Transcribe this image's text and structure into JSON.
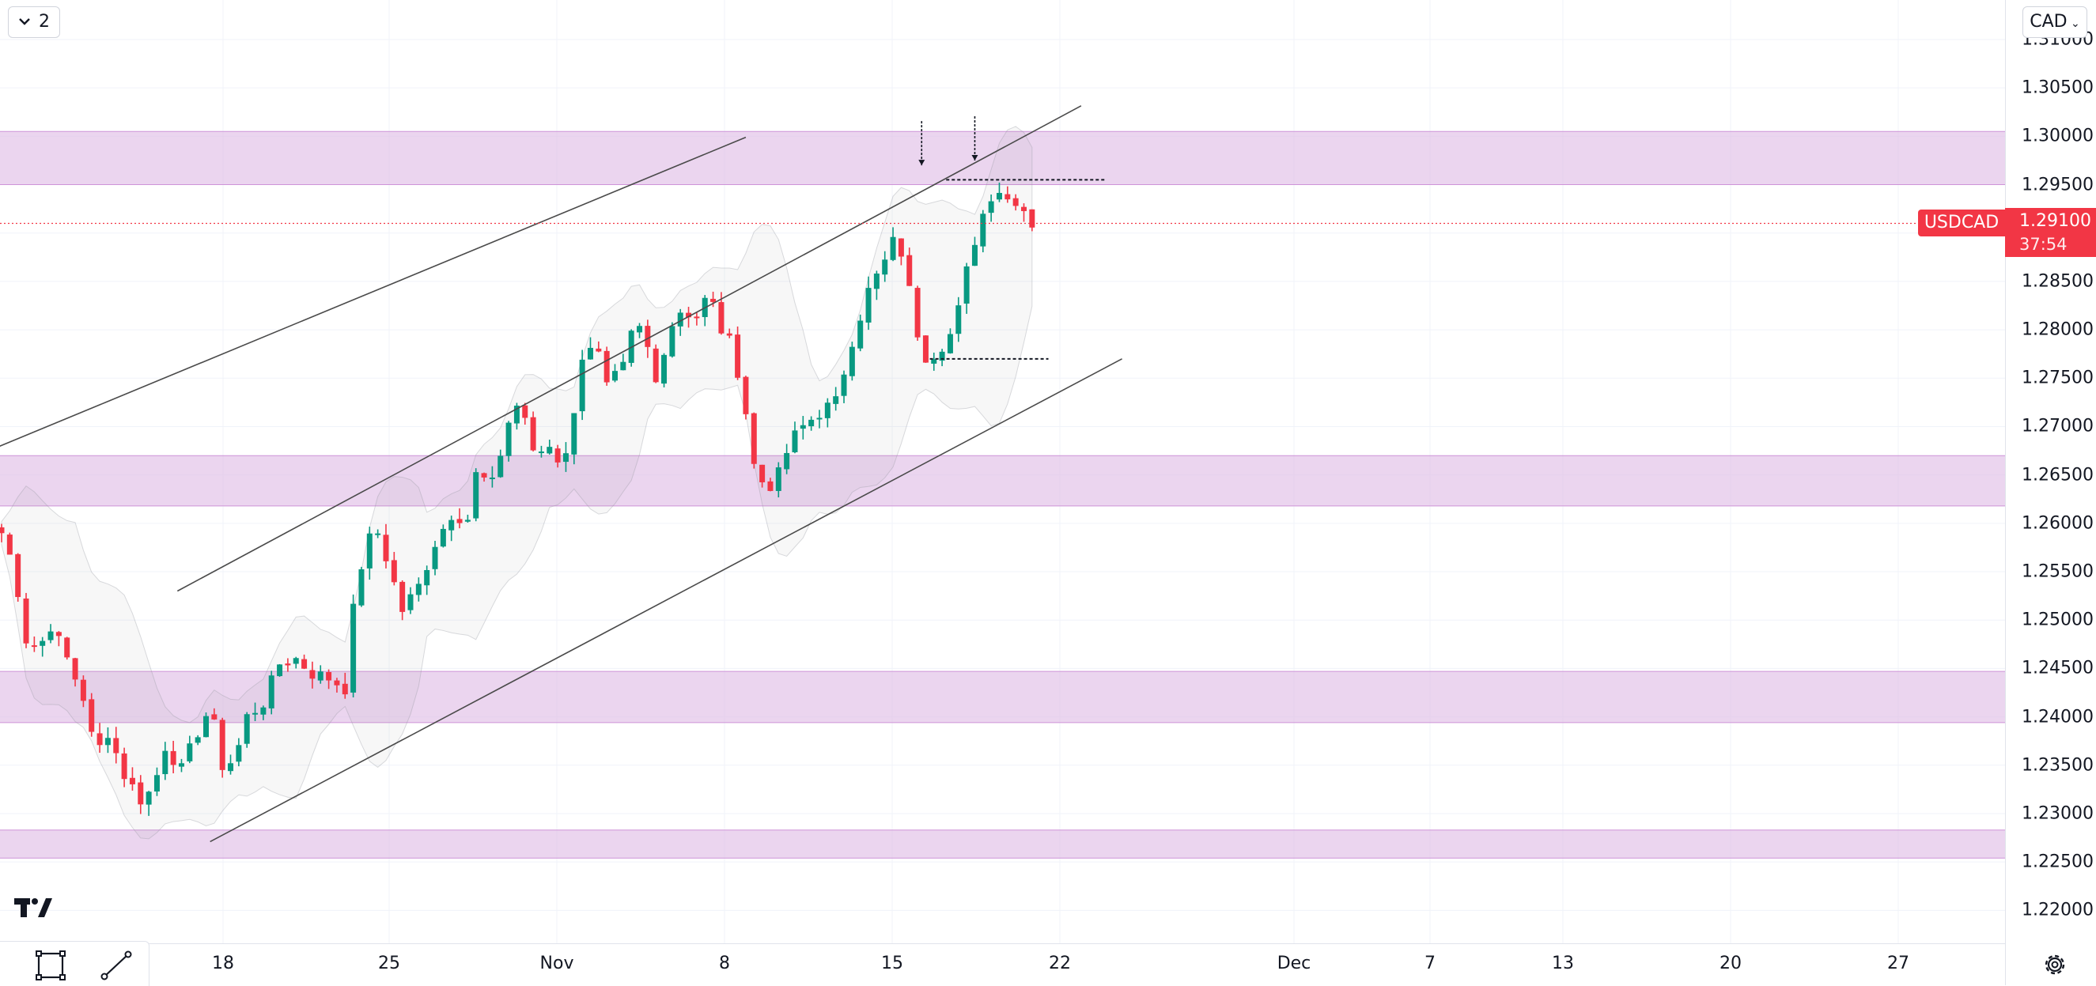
{
  "top_left": {
    "collapse_count": "2"
  },
  "currency": {
    "label": "CAD"
  },
  "symbol": {
    "name": "USDCAD",
    "price": "1.29100",
    "countdown": "37:54"
  },
  "colors": {
    "up": "#089981",
    "down": "#f23645",
    "zone": "#e1bee7",
    "grid": "#f0f3fa",
    "line": "#4a4a4a",
    "band": "#9598a1"
  },
  "icons": [
    "chevron-down-icon",
    "tradingview-logo-icon",
    "rectangle-tool-icon",
    "trendline-tool-icon",
    "settings-gear-icon"
  ],
  "chart_data": {
    "type": "candlestick",
    "symbol": "USDCAD",
    "y_ticks": [
      "1.31000",
      "1.30500",
      "1.30000",
      "1.29500",
      "1.29000",
      "1.28500",
      "1.28000",
      "1.27500",
      "1.27000",
      "1.26500",
      "1.26000",
      "1.25500",
      "1.25000",
      "1.24500",
      "1.24000",
      "1.23500",
      "1.23000",
      "1.22500",
      "1.22000"
    ],
    "x_ticks": [
      "18",
      "25",
      "Nov",
      "8",
      "15",
      "22",
      "Dec",
      "7",
      "13",
      "20",
      "27"
    ],
    "last_price": 1.291,
    "ylim": [
      1.2185,
      1.3115
    ],
    "support_resistance_zones": [
      [
        1.295,
        1.3005
      ],
      [
        1.2618,
        1.267
      ],
      [
        1.2394,
        1.2447
      ],
      [
        1.2254,
        1.2283
      ]
    ],
    "close_path": [
      {
        "x": 0,
        "y": 1.259
      },
      {
        "x": 1.5,
        "y": 1.2555
      },
      {
        "x": 3,
        "y": 1.248
      },
      {
        "x": 4.5,
        "y": 1.247
      },
      {
        "x": 6,
        "y": 1.2495
      },
      {
        "x": 8,
        "y": 1.246
      },
      {
        "x": 10,
        "y": 1.242
      },
      {
        "x": 11.5,
        "y": 1.236
      },
      {
        "x": 13,
        "y": 1.2385
      },
      {
        "x": 15,
        "y": 1.234
      },
      {
        "x": 17,
        "y": 1.2315
      },
      {
        "x": 18.5,
        "y": 1.2325
      },
      {
        "x": 20,
        "y": 1.237
      },
      {
        "x": 22,
        "y": 1.2345
      },
      {
        "x": 24,
        "y": 1.2385
      },
      {
        "x": 25.5,
        "y": 1.241
      },
      {
        "x": 27,
        "y": 1.235
      },
      {
        "x": 28.5,
        "y": 1.2355
      },
      {
        "x": 30,
        "y": 1.24
      },
      {
        "x": 32,
        "y": 1.2415
      },
      {
        "x": 34,
        "y": 1.2455
      },
      {
        "x": 36,
        "y": 1.246
      },
      {
        "x": 38,
        "y": 1.2445
      },
      {
        "x": 40,
        "y": 1.244
      },
      {
        "x": 42,
        "y": 1.243
      },
      {
        "x": 43,
        "y": 1.251
      },
      {
        "x": 44.5,
        "y": 1.258
      },
      {
        "x": 46,
        "y": 1.259
      },
      {
        "x": 47,
        "y": 1.2565
      },
      {
        "x": 49,
        "y": 1.251
      },
      {
        "x": 51,
        "y": 1.2535
      },
      {
        "x": 53,
        "y": 1.258
      },
      {
        "x": 55,
        "y": 1.261
      },
      {
        "x": 57,
        "y": 1.2605
      },
      {
        "x": 58,
        "y": 1.265
      },
      {
        "x": 60,
        "y": 1.264
      },
      {
        "x": 62,
        "y": 1.2705
      },
      {
        "x": 63.5,
        "y": 1.273
      },
      {
        "x": 65,
        "y": 1.267
      },
      {
        "x": 67,
        "y": 1.268
      },
      {
        "x": 68.5,
        "y": 1.266
      },
      {
        "x": 70,
        "y": 1.271
      },
      {
        "x": 71,
        "y": 1.2775
      },
      {
        "x": 72.5,
        "y": 1.279
      },
      {
        "x": 74,
        "y": 1.274
      },
      {
        "x": 76,
        "y": 1.276
      },
      {
        "x": 77.5,
        "y": 1.281
      },
      {
        "x": 79,
        "y": 1.278
      },
      {
        "x": 80,
        "y": 1.2745
      },
      {
        "x": 81.5,
        "y": 1.28
      },
      {
        "x": 83,
        "y": 1.282
      },
      {
        "x": 85,
        "y": 1.2815
      },
      {
        "x": 86,
        "y": 1.283
      },
      {
        "x": 87,
        "y": 1.2825
      },
      {
        "x": 88,
        "y": 1.28
      },
      {
        "x": 89.5,
        "y": 1.278
      },
      {
        "x": 91,
        "y": 1.2715
      },
      {
        "x": 92,
        "y": 1.266
      },
      {
        "x": 93.5,
        "y": 1.2635
      },
      {
        "x": 95,
        "y": 1.265
      },
      {
        "x": 96.5,
        "y": 1.2685
      },
      {
        "x": 98,
        "y": 1.27
      },
      {
        "x": 100,
        "y": 1.2715
      },
      {
        "x": 102,
        "y": 1.2725
      },
      {
        "x": 104,
        "y": 1.279
      },
      {
        "x": 106,
        "y": 1.284
      },
      {
        "x": 108,
        "y": 1.287
      },
      {
        "x": 109.5,
        "y": 1.29
      },
      {
        "x": 110.5,
        "y": 1.286
      },
      {
        "x": 111.5,
        "y": 1.282
      },
      {
        "x": 112.5,
        "y": 1.2775
      },
      {
        "x": 113.5,
        "y": 1.2772
      },
      {
        "x": 115,
        "y": 1.2785
      },
      {
        "x": 116.5,
        "y": 1.28
      },
      {
        "x": 117.5,
        "y": 1.284
      },
      {
        "x": 118.5,
        "y": 1.288
      },
      {
        "x": 120,
        "y": 1.292
      },
      {
        "x": 121,
        "y": 1.294
      },
      {
        "x": 122,
        "y": 1.2945
      },
      {
        "x": 123,
        "y": 1.2935
      },
      {
        "x": 124,
        "y": 1.2935
      },
      {
        "x": 125,
        "y": 1.2925
      },
      {
        "x": 126,
        "y": 1.291
      }
    ],
    "channel_lines": [
      {
        "x1": -4,
        "y1": 1.26665,
        "x2": 91,
        "y2": 1.2999
      },
      {
        "x1": 21.5,
        "y1": 1.253,
        "x2": 132,
        "y2": 1.30315
      },
      {
        "x1": 25.5,
        "y1": 1.2271,
        "x2": 137,
        "y2": 1.277
      }
    ],
    "horizontal_levels": [
      {
        "x1": 115.5,
        "y": 1.2955,
        "x2": 135
      },
      {
        "x1": 113.5,
        "y": 1.277,
        "x2": 128
      }
    ],
    "arrow_markers": [
      {
        "x": 112.5,
        "price": 1.297
      },
      {
        "x": 119,
        "price": 1.2975
      }
    ]
  }
}
